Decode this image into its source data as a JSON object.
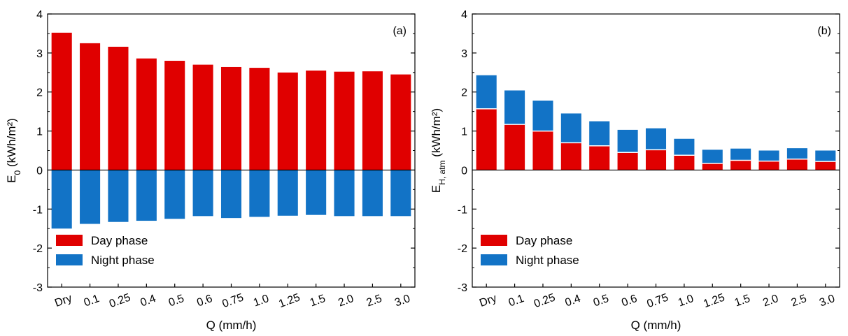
{
  "colors": {
    "day": "#e00000",
    "night": "#1273c6",
    "axis": "#000000"
  },
  "chart_data": [
    {
      "type": "bar",
      "panel_label": "(a)",
      "xlabel": "Q (mm/h)",
      "ylabel_main": "E",
      "ylabel_sub": "0",
      "ylabel_unit": " (kWh/m²)",
      "ylim": [
        -3,
        4
      ],
      "yticks": [
        "-3",
        "-2",
        "-1",
        "0",
        "1",
        "2",
        "3",
        "4"
      ],
      "categories": [
        "Dry",
        "0.1",
        "0.25",
        "0.4",
        "0.5",
        "0.6",
        "0.75",
        "1.0",
        "1.25",
        "1.5",
        "2.0",
        "2.5",
        "3.0"
      ],
      "stacked": false,
      "series": [
        {
          "name": "Day phase",
          "values": [
            3.52,
            3.25,
            3.16,
            2.86,
            2.8,
            2.7,
            2.64,
            2.62,
            2.5,
            2.55,
            2.52,
            2.53,
            2.45
          ]
        },
        {
          "name": "Night phase",
          "values": [
            -1.5,
            -1.38,
            -1.33,
            -1.3,
            -1.25,
            -1.18,
            -1.23,
            -1.2,
            -1.17,
            -1.15,
            -1.18,
            -1.18,
            -1.18
          ]
        }
      ],
      "legend": {
        "position": "bottom-left",
        "entries": [
          "Day phase",
          "Night phase"
        ]
      },
      "grid": false
    },
    {
      "type": "bar",
      "panel_label": "(b)",
      "xlabel": "Q (mm/h)",
      "ylabel_main": "E",
      "ylabel_sub": "H, atm",
      "ylabel_unit": " (kWh/m²)",
      "ylim": [
        -3,
        4
      ],
      "yticks": [
        "-3",
        "-2",
        "-1",
        "0",
        "1",
        "2",
        "3",
        "4"
      ],
      "categories": [
        "Dry",
        "0.1",
        "0.25",
        "0.4",
        "0.5",
        "0.6",
        "0.75",
        "1.0",
        "1.25",
        "1.5",
        "2.0",
        "2.5",
        "3.0"
      ],
      "stacked": true,
      "series": [
        {
          "name": "Day phase",
          "values": [
            1.57,
            1.17,
            1.0,
            0.7,
            0.62,
            0.45,
            0.52,
            0.38,
            0.17,
            0.25,
            0.23,
            0.28,
            0.22
          ]
        },
        {
          "name": "Night phase",
          "values": [
            0.86,
            0.87,
            0.78,
            0.75,
            0.63,
            0.58,
            0.55,
            0.42,
            0.35,
            0.3,
            0.27,
            0.28,
            0.28
          ]
        }
      ],
      "legend": {
        "position": "bottom-left",
        "entries": [
          "Day phase",
          "Night phase"
        ]
      },
      "grid": false
    }
  ]
}
